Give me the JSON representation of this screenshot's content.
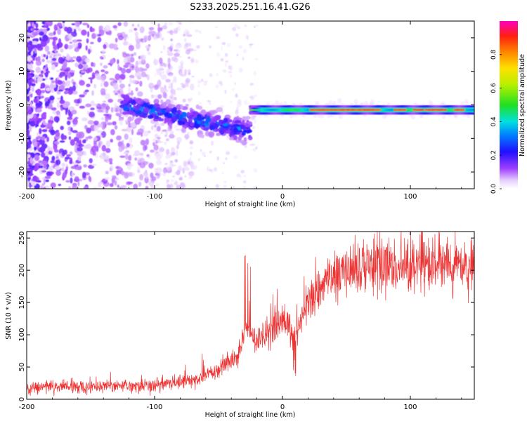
{
  "title": "S233.2025.251.16.41.G26",
  "chart_data": [
    {
      "type": "heatmap",
      "name": "spectrogram",
      "xlabel": "Height of straight line (km)",
      "ylabel": "Frequency (Hz)",
      "xlim": [
        -200,
        150
      ],
      "ylim": [
        -25,
        25
      ],
      "xticks": [
        -200,
        -100,
        0,
        100
      ],
      "yticks": [
        20,
        10,
        0,
        -10,
        -20
      ],
      "colorbar": {
        "label": "Normalized spectral amplitude",
        "range": [
          0,
          1
        ],
        "ticks": [
          0.0,
          0.2,
          0.4,
          0.6,
          0.8
        ]
      },
      "features": {
        "noise_region_x": [
          -200,
          -90
        ],
        "descending_trend": {
          "x": [
            -125,
            -25
          ],
          "y": [
            0,
            -8
          ]
        },
        "steady_tone": {
          "x": [
            -25,
            150
          ],
          "y": -1.5,
          "peak_amplitude": 0.9
        }
      }
    },
    {
      "type": "line",
      "name": "snr",
      "xlabel": "Height of straight line (km)",
      "ylabel": "SNR (10 * v/v)",
      "xlim": [
        -200,
        150
      ],
      "ylim": [
        0,
        260
      ],
      "xticks": [
        -200,
        -100,
        0,
        100
      ],
      "yticks": [
        0,
        50,
        100,
        150,
        200,
        250
      ],
      "color": "#ee3333",
      "series_trend": {
        "x": [
          -200,
          -150,
          -100,
          -70,
          -50,
          -35,
          -28,
          -20,
          -10,
          0,
          10,
          20,
          30,
          50,
          80,
          120,
          150
        ],
        "y": [
          18,
          20,
          22,
          30,
          45,
          70,
          110,
          90,
          105,
          120,
          100,
          150,
          175,
          200,
          205,
          210,
          205
        ]
      }
    }
  ]
}
